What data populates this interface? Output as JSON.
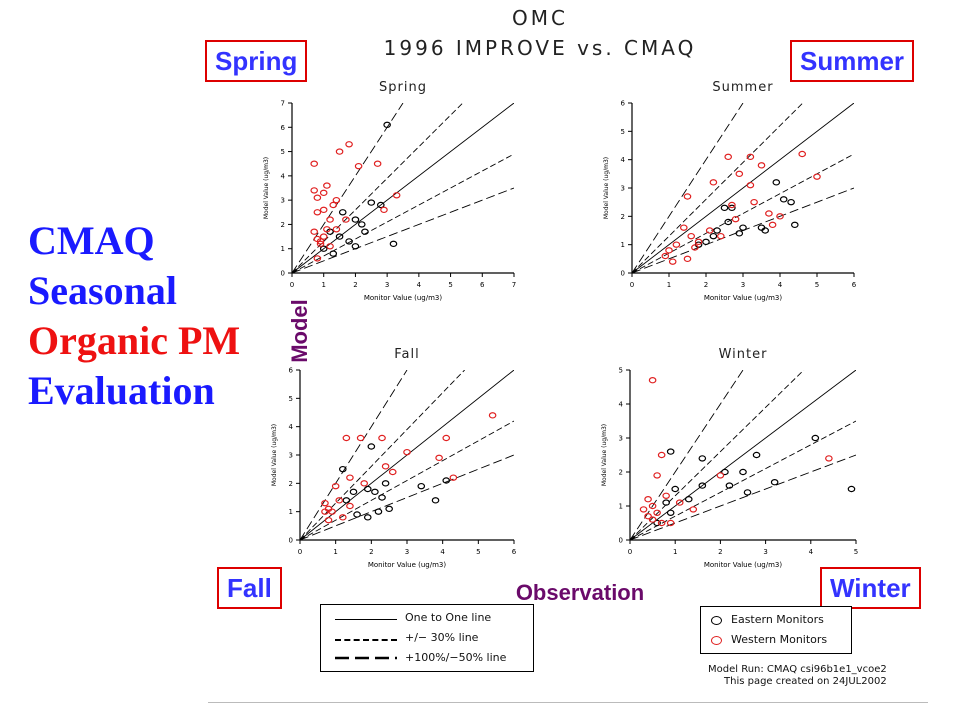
{
  "header": {
    "line1": "OMC",
    "line2": "1996 IMPROVE vs. CMAQ"
  },
  "season_boxes": {
    "spring": "Spring",
    "summer": "Summer",
    "fall": "Fall",
    "winter": "Winter"
  },
  "slide_title": {
    "lines": [
      {
        "text": "CMAQ",
        "color": "#1a1aff"
      },
      {
        "text": "Seasonal",
        "color": "#1a1aff"
      },
      {
        "text": "Organic PM",
        "color": "#ee1111"
      },
      {
        "text": "Evaluation",
        "color": "#1a1aff"
      }
    ]
  },
  "axis_titles": {
    "y": "Model",
    "x": "Observation"
  },
  "legend": {
    "lines": [
      {
        "label": "One to One line",
        "style": "solid"
      },
      {
        "label": "+/− 30% line",
        "style": "short-dash"
      },
      {
        "label": "+100%/−50% line",
        "style": "long-dash"
      }
    ],
    "markers": [
      {
        "label": "Eastern Monitors",
        "color": "#000000"
      },
      {
        "label": "Western Monitors",
        "color": "#e02020"
      }
    ]
  },
  "footer": {
    "line1": "Model Run: CMAQ csi96b1e1_vcoe2",
    "line2": "This page created on 24JUL2002"
  },
  "colors": {
    "eastern": "#000000",
    "western": "#e02020"
  },
  "chart_data": [
    {
      "type": "scatter",
      "title": "Spring",
      "xlabel": "Monitor Value (ug/m3)",
      "ylabel": "Model Value (ug/m3)",
      "xlim": [
        0,
        7
      ],
      "ylim": [
        0,
        7
      ],
      "xticks": [
        0,
        1,
        2,
        3,
        4,
        5,
        6,
        7
      ],
      "yticks": [
        0,
        1,
        2,
        3,
        4,
        5,
        6,
        7
      ],
      "series": [
        {
          "name": "Eastern Monitors",
          "points": [
            [
              3.0,
              6.1
            ],
            [
              2.5,
              2.9
            ],
            [
              2.0,
              2.2
            ],
            [
              2.2,
              2.0
            ],
            [
              1.5,
              1.5
            ],
            [
              1.8,
              1.3
            ],
            [
              2.0,
              1.1
            ],
            [
              3.2,
              1.2
            ],
            [
              1.0,
              1.0
            ],
            [
              1.3,
              0.8
            ],
            [
              2.8,
              2.8
            ],
            [
              2.3,
              1.7
            ],
            [
              1.6,
              2.5
            ],
            [
              1.2,
              1.7
            ]
          ]
        },
        {
          "name": "Western Monitors",
          "points": [
            [
              0.7,
              4.5
            ],
            [
              1.5,
              5.0
            ],
            [
              1.8,
              5.3
            ],
            [
              2.1,
              4.4
            ],
            [
              2.7,
              4.5
            ],
            [
              0.7,
              3.4
            ],
            [
              0.8,
              3.1
            ],
            [
              1.0,
              3.3
            ],
            [
              1.1,
              3.6
            ],
            [
              1.4,
              3.0
            ],
            [
              0.8,
              2.5
            ],
            [
              1.0,
              2.6
            ],
            [
              1.2,
              2.2
            ],
            [
              0.7,
              1.7
            ],
            [
              0.8,
              1.4
            ],
            [
              0.9,
              1.2
            ],
            [
              1.0,
              1.5
            ],
            [
              1.2,
              1.1
            ],
            [
              0.8,
              0.6
            ],
            [
              1.4,
              1.8
            ],
            [
              1.7,
              2.2
            ],
            [
              2.9,
              2.6
            ],
            [
              3.3,
              3.2
            ],
            [
              1.3,
              2.8
            ],
            [
              0.9,
              1.3
            ],
            [
              1.1,
              1.8
            ]
          ]
        }
      ]
    },
    {
      "type": "scatter",
      "title": "Summer",
      "xlabel": "Monitor Value (ug/m3)",
      "ylabel": "Model Value (ug/m3)",
      "xlim": [
        0,
        6
      ],
      "ylim": [
        0,
        6
      ],
      "xticks": [
        0,
        1,
        2,
        3,
        4,
        5,
        6
      ],
      "yticks": [
        0,
        1,
        2,
        3,
        4,
        5,
        6
      ],
      "series": [
        {
          "name": "Eastern Monitors",
          "points": [
            [
              3.9,
              3.2
            ],
            [
              4.1,
              2.6
            ],
            [
              4.3,
              2.5
            ],
            [
              4.4,
              1.7
            ],
            [
              3.5,
              1.6
            ],
            [
              3.6,
              1.5
            ],
            [
              2.9,
              1.4
            ],
            [
              2.6,
              1.8
            ],
            [
              2.5,
              2.3
            ],
            [
              2.7,
              2.3
            ],
            [
              2.2,
              1.3
            ],
            [
              1.8,
              1.0
            ],
            [
              2.0,
              1.1
            ],
            [
              2.3,
              1.5
            ],
            [
              3.0,
              1.6
            ]
          ]
        },
        {
          "name": "Western Monitors",
          "points": [
            [
              2.6,
              4.1
            ],
            [
              3.2,
              4.1
            ],
            [
              4.6,
              4.2
            ],
            [
              2.2,
              3.2
            ],
            [
              2.9,
              3.5
            ],
            [
              3.5,
              3.8
            ],
            [
              3.2,
              3.1
            ],
            [
              1.5,
              2.7
            ],
            [
              3.3,
              2.5
            ],
            [
              2.7,
              2.4
            ],
            [
              5.0,
              3.4
            ],
            [
              3.7,
              2.1
            ],
            [
              4.0,
              2.0
            ],
            [
              1.4,
              1.6
            ],
            [
              1.6,
              1.3
            ],
            [
              1.8,
              1.1
            ],
            [
              2.1,
              1.5
            ],
            [
              2.4,
              1.3
            ],
            [
              1.2,
              1.0
            ],
            [
              1.0,
              0.8
            ],
            [
              0.9,
              0.6
            ],
            [
              1.1,
              0.4
            ],
            [
              1.5,
              0.5
            ],
            [
              1.7,
              0.9
            ],
            [
              2.8,
              1.9
            ],
            [
              3.8,
              1.7
            ]
          ]
        }
      ]
    },
    {
      "type": "scatter",
      "title": "Fall",
      "xlabel": "Monitor Value (ug/m3)",
      "ylabel": "Model Value (ug/m3)",
      "xlim": [
        0,
        6
      ],
      "ylim": [
        0,
        6
      ],
      "xticks": [
        0,
        1,
        2,
        3,
        4,
        5,
        6
      ],
      "yticks": [
        0,
        1,
        2,
        3,
        4,
        5,
        6
      ],
      "series": [
        {
          "name": "Eastern Monitors",
          "points": [
            [
              2.0,
              3.3
            ],
            [
              1.2,
              2.5
            ],
            [
              2.4,
              2.0
            ],
            [
              2.1,
              1.7
            ],
            [
              2.3,
              1.5
            ],
            [
              1.9,
              1.8
            ],
            [
              1.5,
              1.7
            ],
            [
              1.3,
              1.4
            ],
            [
              3.4,
              1.9
            ],
            [
              3.8,
              1.4
            ],
            [
              2.2,
              1.0
            ],
            [
              2.5,
              1.1
            ],
            [
              1.6,
              0.9
            ],
            [
              1.9,
              0.8
            ],
            [
              4.1,
              2.1
            ]
          ]
        },
        {
          "name": "Western Monitors",
          "points": [
            [
              5.4,
              4.4
            ],
            [
              4.1,
              3.6
            ],
            [
              2.3,
              3.6
            ],
            [
              1.3,
              3.6
            ],
            [
              1.7,
              3.6
            ],
            [
              3.0,
              3.1
            ],
            [
              3.9,
              2.9
            ],
            [
              2.4,
              2.6
            ],
            [
              1.4,
              2.2
            ],
            [
              1.8,
              2.0
            ],
            [
              1.0,
              1.9
            ],
            [
              0.7,
              1.3
            ],
            [
              0.8,
              1.1
            ],
            [
              0.9,
              1.0
            ],
            [
              1.1,
              1.4
            ],
            [
              1.4,
              1.2
            ],
            [
              4.3,
              2.2
            ],
            [
              2.6,
              2.4
            ],
            [
              0.7,
              1.0
            ],
            [
              0.8,
              0.7
            ],
            [
              1.2,
              0.8
            ]
          ]
        }
      ]
    },
    {
      "type": "scatter",
      "title": "Winter",
      "xlabel": "Monitor Value (ug/m3)",
      "ylabel": "Model Value (ug/m3)",
      "xlim": [
        0,
        5
      ],
      "ylim": [
        0,
        5
      ],
      "xticks": [
        0,
        1,
        2,
        3,
        4,
        5
      ],
      "yticks": [
        0,
        1,
        2,
        3,
        4,
        5
      ],
      "series": [
        {
          "name": "Eastern Monitors",
          "points": [
            [
              4.1,
              3.0
            ],
            [
              4.9,
              1.5
            ],
            [
              3.2,
              1.7
            ],
            [
              2.8,
              2.5
            ],
            [
              2.5,
              2.0
            ],
            [
              2.1,
              2.0
            ],
            [
              2.2,
              1.6
            ],
            [
              2.6,
              1.4
            ],
            [
              1.6,
              2.4
            ],
            [
              1.6,
              1.6
            ],
            [
              1.3,
              1.2
            ],
            [
              1.0,
              1.5
            ],
            [
              0.9,
              2.6
            ],
            [
              0.8,
              1.1
            ],
            [
              0.9,
              0.8
            ],
            [
              0.6,
              0.5
            ]
          ]
        },
        {
          "name": "Western Monitors",
          "points": [
            [
              0.5,
              4.7
            ],
            [
              4.4,
              2.4
            ],
            [
              0.7,
              2.5
            ],
            [
              0.6,
              1.9
            ],
            [
              0.4,
              1.2
            ],
            [
              0.5,
              1.0
            ],
            [
              0.6,
              0.8
            ],
            [
              0.3,
              0.9
            ],
            [
              0.4,
              0.7
            ],
            [
              0.5,
              0.6
            ],
            [
              0.8,
              1.3
            ],
            [
              1.1,
              1.1
            ],
            [
              1.4,
              0.9
            ],
            [
              2.0,
              1.9
            ],
            [
              0.7,
              0.5
            ],
            [
              0.9,
              0.5
            ]
          ]
        }
      ]
    }
  ]
}
